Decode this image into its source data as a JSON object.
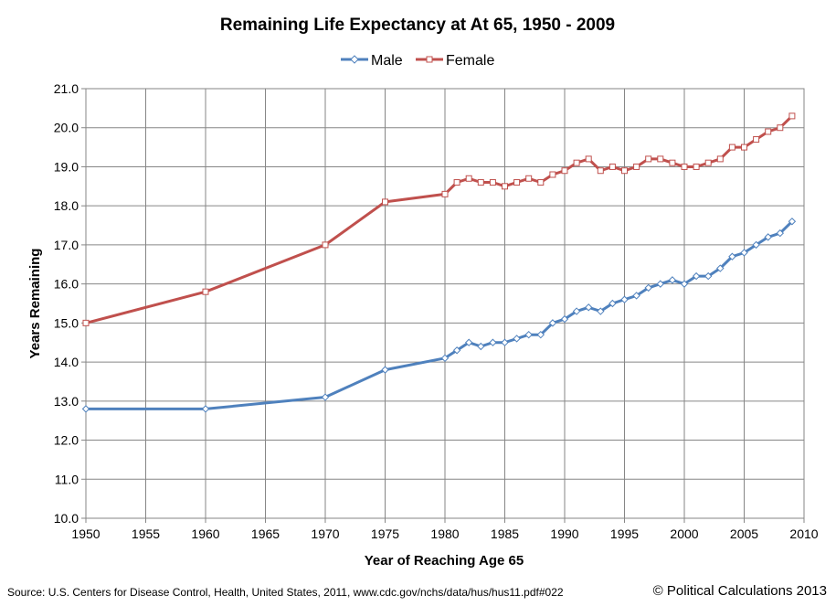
{
  "chart_data": {
    "type": "line",
    "title": "Remaining Life Expectancy at At 65, 1950 - 2009",
    "xlabel": "Year of Reaching Age 65",
    "ylabel": "Years Remaining",
    "xlim": [
      1950,
      2010
    ],
    "ylim": [
      10.0,
      21.0
    ],
    "xticks": [
      "1950",
      "1955",
      "1960",
      "1965",
      "1970",
      "1975",
      "1980",
      "1985",
      "1990",
      "1995",
      "2000",
      "2005",
      "2010"
    ],
    "yticks": [
      "10.0",
      "11.0",
      "12.0",
      "13.0",
      "14.0",
      "15.0",
      "16.0",
      "17.0",
      "18.0",
      "19.0",
      "20.0",
      "21.0"
    ],
    "grid": true,
    "legend_position": "top-center",
    "series": [
      {
        "name": "Male",
        "color": "#4f81bd",
        "marker": "diamond",
        "x": [
          1950,
          1960,
          1970,
          1975,
          1980,
          1981,
          1982,
          1983,
          1984,
          1985,
          1986,
          1987,
          1988,
          1989,
          1990,
          1991,
          1992,
          1993,
          1994,
          1995,
          1996,
          1997,
          1998,
          1999,
          2000,
          2001,
          2002,
          2003,
          2004,
          2005,
          2006,
          2007,
          2008,
          2009
        ],
        "y": [
          12.8,
          12.8,
          13.1,
          13.8,
          14.1,
          14.3,
          14.5,
          14.4,
          14.5,
          14.5,
          14.6,
          14.7,
          14.7,
          15.0,
          15.1,
          15.3,
          15.4,
          15.3,
          15.5,
          15.6,
          15.7,
          15.9,
          16.0,
          16.1,
          16.0,
          16.2,
          16.2,
          16.4,
          16.7,
          16.8,
          17.0,
          17.2,
          17.3,
          17.6
        ]
      },
      {
        "name": "Female",
        "color": "#c0504d",
        "marker": "square",
        "x": [
          1950,
          1960,
          1970,
          1975,
          1980,
          1981,
          1982,
          1983,
          1984,
          1985,
          1986,
          1987,
          1988,
          1989,
          1990,
          1991,
          1992,
          1993,
          1994,
          1995,
          1996,
          1997,
          1998,
          1999,
          2000,
          2001,
          2002,
          2003,
          2004,
          2005,
          2006,
          2007,
          2008,
          2009
        ],
        "y": [
          15.0,
          15.8,
          17.0,
          18.1,
          18.3,
          18.6,
          18.7,
          18.6,
          18.6,
          18.5,
          18.6,
          18.7,
          18.6,
          18.8,
          18.9,
          19.1,
          19.2,
          18.9,
          19.0,
          18.9,
          19.0,
          19.2,
          19.2,
          19.1,
          19.0,
          19.0,
          19.1,
          19.2,
          19.5,
          19.5,
          19.7,
          19.9,
          20.0,
          20.3
        ]
      }
    ]
  },
  "footer": {
    "source": "Source: U.S. Centers for Disease Control, Health, United States, 2011, www.cdc.gov/nchs/data/hus/hus11.pdf#022",
    "copyright": "© Political Calculations 2013"
  }
}
